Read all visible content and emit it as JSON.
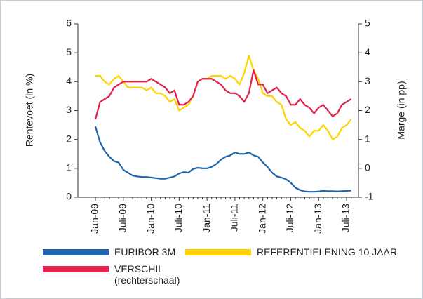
{
  "chart_data": {
    "type": "line",
    "categories": [
      "Jan-09",
      null,
      null,
      null,
      null,
      null,
      "Juli-09",
      null,
      null,
      null,
      null,
      null,
      "Jan-10",
      null,
      null,
      null,
      null,
      null,
      "Juli-10",
      null,
      null,
      null,
      null,
      null,
      "Jan-11",
      null,
      null,
      null,
      null,
      null,
      "Juli-11",
      null,
      null,
      null,
      null,
      null,
      "Jan-12",
      null,
      null,
      null,
      null,
      null,
      "Juli-12",
      null,
      null,
      null,
      null,
      null,
      "Jan-13",
      null,
      null,
      null,
      null,
      null,
      "Juli-13",
      null
    ],
    "y_label": "Rentevoet (in %)",
    "y2_label": "Marge (in pp)",
    "ylim": [
      0,
      6
    ],
    "yticks": [
      0,
      1,
      2,
      3,
      4,
      5,
      6
    ],
    "y2lim": [
      -1,
      5
    ],
    "y2ticks": [
      -1,
      0,
      1,
      2,
      3,
      4,
      5
    ],
    "legend": "bottom",
    "series": [
      {
        "name": "EURIBOR 3M",
        "color": "#1f64ad",
        "values": [
          2.45,
          1.9,
          1.6,
          1.4,
          1.25,
          1.2,
          0.95,
          0.85,
          0.75,
          0.72,
          0.7,
          0.7,
          0.68,
          0.66,
          0.64,
          0.64,
          0.68,
          0.72,
          0.82,
          0.87,
          0.85,
          0.98,
          1.02,
          1.0,
          1.0,
          1.05,
          1.15,
          1.3,
          1.4,
          1.45,
          1.55,
          1.5,
          1.5,
          1.55,
          1.45,
          1.4,
          1.2,
          1.05,
          0.85,
          0.72,
          0.68,
          0.62,
          0.5,
          0.33,
          0.25,
          0.2,
          0.19,
          0.19,
          0.2,
          0.22,
          0.21,
          0.21,
          0.2,
          0.21,
          0.22,
          0.23
        ]
      },
      {
        "name": "REFERENTIELENING 10 JAAR",
        "color": "#ffd200",
        "values": [
          4.2,
          4.2,
          4.0,
          3.9,
          4.1,
          4.2,
          4.0,
          3.8,
          3.8,
          3.8,
          3.8,
          3.7,
          3.8,
          3.6,
          3.6,
          3.5,
          3.3,
          3.4,
          3.0,
          3.1,
          3.2,
          3.5,
          4.0,
          4.1,
          4.1,
          4.2,
          4.2,
          4.2,
          4.1,
          4.2,
          4.1,
          3.9,
          4.3,
          4.9,
          4.4,
          4.1,
          3.6,
          3.5,
          3.5,
          3.3,
          3.2,
          2.7,
          2.5,
          2.6,
          2.4,
          2.3,
          2.1,
          2.3,
          2.3,
          2.5,
          2.3,
          2.0,
          2.1,
          2.4,
          2.5,
          2.7
        ]
      },
      {
        "name": "VERSCHIL\n(rechterschaal)",
        "color": "#e4204c",
        "axis": "y2",
        "values": [
          1.7,
          2.3,
          2.4,
          2.5,
          2.8,
          2.9,
          3.0,
          3.0,
          3.0,
          3.0,
          3.0,
          3.0,
          3.1,
          3.0,
          2.9,
          2.8,
          2.6,
          2.7,
          2.2,
          2.2,
          2.3,
          2.5,
          3.0,
          3.1,
          3.1,
          3.1,
          3.0,
          2.9,
          2.7,
          2.6,
          2.6,
          2.5,
          2.3,
          2.6,
          3.4,
          2.9,
          2.9,
          2.6,
          2.7,
          2.8,
          2.6,
          2.5,
          2.2,
          2.2,
          2.4,
          2.2,
          2.1,
          1.9,
          2.1,
          2.2,
          2.0,
          1.8,
          1.9,
          2.2,
          2.3,
          2.4
        ]
      }
    ]
  }
}
